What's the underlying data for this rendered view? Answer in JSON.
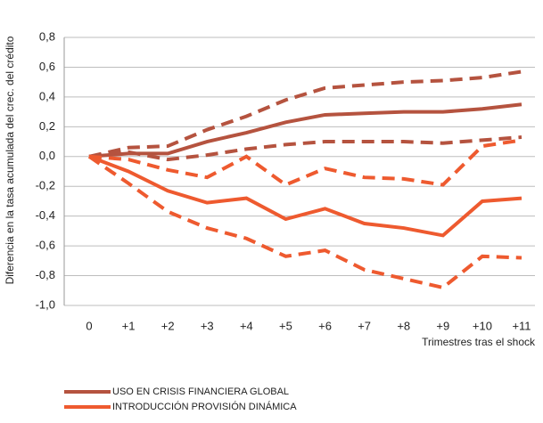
{
  "chart_data": {
    "type": "line",
    "y_label": "Diferencia en la tasa acumulada del crec. del crédito",
    "x_label": "Trimestres tras el shock",
    "categories": [
      "0",
      "+1",
      "+2",
      "+3",
      "+4",
      "+5",
      "+6",
      "+7",
      "+8",
      "+9",
      "+10",
      "+11"
    ],
    "ylim": [
      -1.0,
      0.8
    ],
    "yticks": [
      {
        "value": 0.8,
        "label": "0,8"
      },
      {
        "value": 0.6,
        "label": "0,6"
      },
      {
        "value": 0.4,
        "label": "0,4"
      },
      {
        "value": 0.2,
        "label": "0,2"
      },
      {
        "value": 0,
        "label": "0,0"
      },
      {
        "value": -0.2,
        "label": "-0,2"
      },
      {
        "value": -0.4,
        "label": "-0,4"
      },
      {
        "value": -0.6,
        "label": "-0,6"
      },
      {
        "value": -0.8,
        "label": "-0,8"
      },
      {
        "value": -1.0,
        "label": "-1,0"
      }
    ],
    "grid": true,
    "series": [
      {
        "name": "USO EN CRISIS FINANCIERA GLOBAL",
        "color": "#b5533f",
        "style": "solid",
        "values": [
          0,
          0.02,
          0.02,
          0.1,
          0.16,
          0.23,
          0.28,
          0.29,
          0.3,
          0.3,
          0.32,
          0.35
        ]
      },
      {
        "color": "#b5533f",
        "style": "dashed",
        "values": [
          0,
          0.06,
          0.07,
          0.18,
          0.27,
          0.38,
          0.46,
          0.48,
          0.5,
          0.51,
          0.53,
          0.57
        ]
      },
      {
        "color": "#b5533f",
        "style": "dashed",
        "values": [
          0,
          0.03,
          -0.02,
          0.01,
          0.05,
          0.08,
          0.1,
          0.1,
          0.1,
          0.09,
          0.11,
          0.13
        ]
      },
      {
        "name": "INTRODUCCIÓN PROVISIÓN DINÁMICA",
        "color": "#ee5a2f",
        "style": "solid",
        "values": [
          0,
          -0.1,
          -0.23,
          -0.31,
          -0.28,
          -0.42,
          -0.35,
          -0.45,
          -0.48,
          -0.53,
          -0.3,
          -0.28
        ]
      },
      {
        "color": "#ee5a2f",
        "style": "dashed",
        "values": [
          0,
          -0.02,
          -0.09,
          -0.14,
          0.0,
          -0.19,
          -0.08,
          -0.14,
          -0.15,
          -0.19,
          0.07,
          0.11
        ]
      },
      {
        "color": "#ee5a2f",
        "style": "dashed",
        "values": [
          0,
          -0.18,
          -0.37,
          -0.48,
          -0.55,
          -0.67,
          -0.63,
          -0.76,
          -0.82,
          -0.88,
          -0.67,
          -0.68
        ]
      }
    ]
  }
}
